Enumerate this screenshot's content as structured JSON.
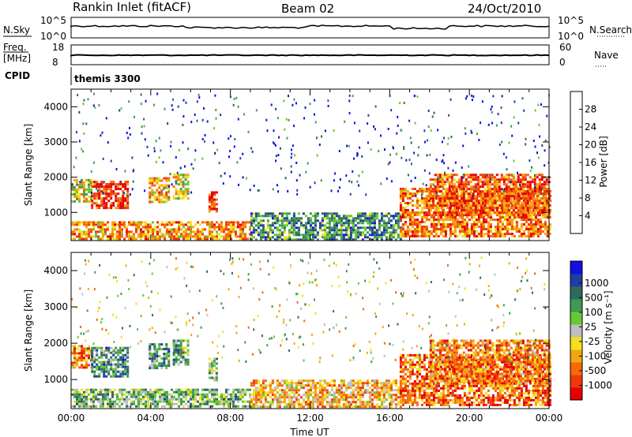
{
  "header": {
    "station": "Rankin Inlet (fitACF)",
    "beam": "Beam 02",
    "date": "24/Oct/2010"
  },
  "top_panels": {
    "nsky_label": "N.Sky",
    "nsky_top": "10^5",
    "nsky_bottom": "10^0",
    "nsearch_label": "N.Search",
    "nsearch_top": "10^5",
    "nsearch_bottom": "10^0",
    "freq_label": "Freq.",
    "freq_unit": "[MHz]",
    "freq_top": "18",
    "freq_bottom": "8",
    "nave_label": "Nave",
    "nave_top": "60",
    "nave_bottom": "0",
    "cpid_label": "CPID",
    "cpid_value": "themis 3300"
  },
  "colors": {
    "power": [
      "#1010e0",
      "#1e3fa0",
      "#2f6a5f",
      "#3f9a55",
      "#66c832",
      "#f2e11e",
      "#f5a60e",
      "#f46a0a",
      "#f0390a",
      "#e60000"
    ],
    "velocity": [
      "#e60000",
      "#f0390a",
      "#f46a0a",
      "#f5a60e",
      "#f2e11e",
      "#bebebe",
      "#66c832",
      "#3f9a55",
      "#2f6a5f",
      "#1e3fa0",
      "#1010e0"
    ]
  },
  "chart_data": [
    {
      "type": "heatmap",
      "name": "power",
      "ylabel": "Slant Range [km]",
      "xlabel": "",
      "y_ticks": [
        "1000",
        "2000",
        "3000",
        "4000"
      ],
      "ylim": [
        200,
        4500
      ],
      "x_ticks": [
        "00:00",
        "04:00",
        "08:00",
        "12:00",
        "16:00",
        "20:00",
        "00:00"
      ],
      "xlim_hours": [
        0,
        24
      ],
      "colorbar_label": "Power [dB]",
      "colorbar_ticks": [
        "4",
        "8",
        "12",
        "16",
        "20",
        "24",
        "28"
      ],
      "colorbar_range": [
        0,
        32
      ],
      "echo_regions": [
        {
          "t0": 0.0,
          "t1": 1.0,
          "r0": 1300,
          "r1": 1950,
          "level": 0.55
        },
        {
          "t0": 1.0,
          "t1": 2.9,
          "r0": 1100,
          "r1": 1900,
          "level": 0.85
        },
        {
          "t0": 3.9,
          "t1": 4.9,
          "r0": 1300,
          "r1": 2000,
          "level": 0.7
        },
        {
          "t0": 5.1,
          "t1": 5.9,
          "r0": 1400,
          "r1": 2100,
          "level": 0.55
        },
        {
          "t0": 6.9,
          "t1": 7.3,
          "r0": 1000,
          "r1": 1600,
          "level": 0.85
        },
        {
          "t0": 0.0,
          "t1": 9.0,
          "r0": 250,
          "r1": 750,
          "level": 0.7
        },
        {
          "t0": 9.0,
          "t1": 16.5,
          "r0": 250,
          "r1": 1000,
          "level": 0.3
        },
        {
          "t0": 16.5,
          "t1": 24.0,
          "r0": 300,
          "r1": 1700,
          "level": 0.75
        },
        {
          "t0": 18.0,
          "t1": 24.0,
          "r0": 900,
          "r1": 2100,
          "level": 0.8
        }
      ]
    },
    {
      "type": "heatmap",
      "name": "velocity",
      "ylabel": "Slant Range [km]",
      "xlabel": "Time UT",
      "y_ticks": [
        "1000",
        "2000",
        "3000",
        "4000"
      ],
      "ylim": [
        200,
        4500
      ],
      "x_ticks": [
        "00:00",
        "04:00",
        "08:00",
        "12:00",
        "16:00",
        "20:00",
        "00:00"
      ],
      "xlim_hours": [
        0,
        24
      ],
      "colorbar_label": "Velocity [m s⁻¹]",
      "colorbar_ticks": [
        "1000",
        "500",
        "100",
        "25",
        "-25",
        "-100",
        "-500",
        "-1000"
      ],
      "echo_regions": [
        {
          "t0": 0.0,
          "t1": 1.0,
          "r0": 1300,
          "r1": 1950,
          "level": 0.25
        },
        {
          "t0": 1.0,
          "t1": 2.9,
          "r0": 1100,
          "r1": 1900,
          "level": 0.7
        },
        {
          "t0": 3.9,
          "t1": 4.9,
          "r0": 1300,
          "r1": 2000,
          "level": 0.7
        },
        {
          "t0": 5.1,
          "t1": 5.9,
          "r0": 1400,
          "r1": 2100,
          "level": 0.65
        },
        {
          "t0": 6.9,
          "t1": 7.3,
          "r0": 1000,
          "r1": 1600,
          "level": 0.6
        },
        {
          "t0": 0.0,
          "t1": 9.0,
          "r0": 250,
          "r1": 750,
          "level": 0.6
        },
        {
          "t0": 9.0,
          "t1": 16.5,
          "r0": 250,
          "r1": 1000,
          "level": 0.35
        },
        {
          "t0": 16.5,
          "t1": 24.0,
          "r0": 300,
          "r1": 1700,
          "level": 0.2
        },
        {
          "t0": 18.0,
          "t1": 24.0,
          "r0": 900,
          "r1": 2100,
          "level": 0.25
        }
      ]
    }
  ]
}
